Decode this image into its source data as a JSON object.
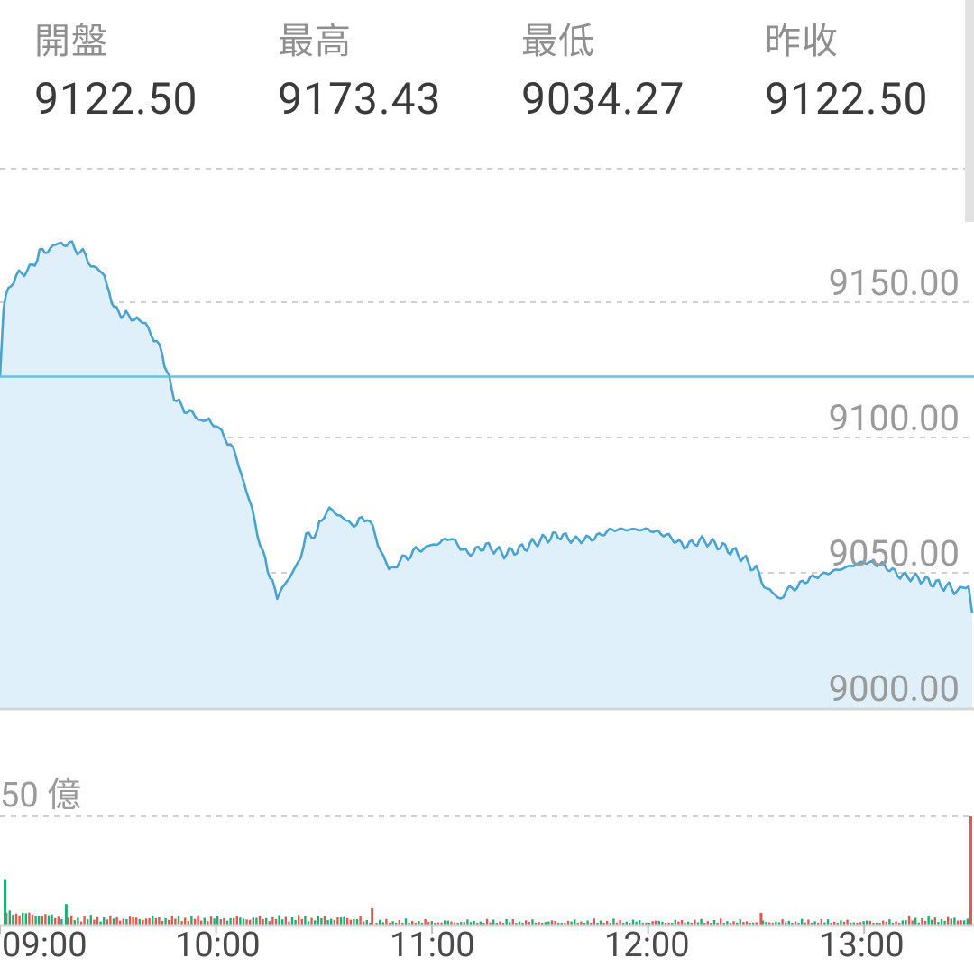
{
  "stats": [
    {
      "label": "開盤",
      "value": "9122.50"
    },
    {
      "label": "最高",
      "value": "9173.43"
    },
    {
      "label": "最低",
      "value": "9034.27"
    },
    {
      "label": "昨收",
      "value": "9122.50"
    }
  ],
  "price_axis": {
    "labels": [
      "9150.00",
      "9100.00",
      "9050.00",
      "9000.00"
    ]
  },
  "time_axis": {
    "labels": [
      "09:00",
      "10:00",
      "11:00",
      "12:00",
      "13:00"
    ]
  },
  "volume_axis": {
    "label": "50 億"
  },
  "colors": {
    "line": "#4aa3cf",
    "fill": "#dff0fb",
    "reference": "#6fbde3",
    "up": "#e05a4e",
    "down": "#1fae74",
    "grid": "#cfcfcf"
  },
  "chart_data": {
    "type": "area",
    "title": "",
    "x_range": [
      "09:00",
      "13:30"
    ],
    "y_range": [
      9000,
      9150
    ],
    "reference_line": 9122.5,
    "price_series": [
      {
        "t": "09:00",
        "y": 9122.5
      },
      {
        "t": "09:01",
        "y": 9149
      },
      {
        "t": "09:03",
        "y": 9157
      },
      {
        "t": "09:06",
        "y": 9161
      },
      {
        "t": "09:09",
        "y": 9163
      },
      {
        "t": "09:11",
        "y": 9168
      },
      {
        "t": "09:14",
        "y": 9170
      },
      {
        "t": "09:17",
        "y": 9172
      },
      {
        "t": "09:20",
        "y": 9171
      },
      {
        "t": "09:23",
        "y": 9168
      },
      {
        "t": "09:26",
        "y": 9163
      },
      {
        "t": "09:29",
        "y": 9160
      },
      {
        "t": "09:31",
        "y": 9150
      },
      {
        "t": "09:33",
        "y": 9146
      },
      {
        "t": "09:35",
        "y": 9145
      },
      {
        "t": "09:38",
        "y": 9144
      },
      {
        "t": "09:42",
        "y": 9139
      },
      {
        "t": "09:45",
        "y": 9131
      },
      {
        "t": "09:47",
        "y": 9121
      },
      {
        "t": "09:49",
        "y": 9113
      },
      {
        "t": "09:52",
        "y": 9110
      },
      {
        "t": "09:55",
        "y": 9107
      },
      {
        "t": "09:58",
        "y": 9106
      },
      {
        "t": "10:00",
        "y": 9104
      },
      {
        "t": "10:04",
        "y": 9098
      },
      {
        "t": "10:07",
        "y": 9087
      },
      {
        "t": "10:10",
        "y": 9073
      },
      {
        "t": "10:13",
        "y": 9057
      },
      {
        "t": "10:15",
        "y": 9049
      },
      {
        "t": "10:17",
        "y": 9041
      },
      {
        "t": "10:19",
        "y": 9046
      },
      {
        "t": "10:22",
        "y": 9051
      },
      {
        "t": "10:25",
        "y": 9063
      },
      {
        "t": "10:28",
        "y": 9065
      },
      {
        "t": "10:30",
        "y": 9072
      },
      {
        "t": "10:33",
        "y": 9073
      },
      {
        "t": "10:36",
        "y": 9069
      },
      {
        "t": "10:39",
        "y": 9068
      },
      {
        "t": "10:42",
        "y": 9071
      },
      {
        "t": "10:45",
        "y": 9061
      },
      {
        "t": "10:48",
        "y": 9051
      },
      {
        "t": "10:51",
        "y": 9054
      },
      {
        "t": "10:54",
        "y": 9057
      },
      {
        "t": "10:57",
        "y": 9059
      },
      {
        "t": "11:00",
        "y": 9060
      },
      {
        "t": "11:05",
        "y": 9063
      },
      {
        "t": "11:10",
        "y": 9057
      },
      {
        "t": "11:15",
        "y": 9060
      },
      {
        "t": "11:20",
        "y": 9057
      },
      {
        "t": "11:25",
        "y": 9059
      },
      {
        "t": "11:30",
        "y": 9062
      },
      {
        "t": "11:35",
        "y": 9064
      },
      {
        "t": "11:40",
        "y": 9062
      },
      {
        "t": "11:45",
        "y": 9063
      },
      {
        "t": "11:50",
        "y": 9066
      },
      {
        "t": "11:55",
        "y": 9066
      },
      {
        "t": "12:00",
        "y": 9066
      },
      {
        "t": "12:05",
        "y": 9064
      },
      {
        "t": "12:10",
        "y": 9060
      },
      {
        "t": "12:15",
        "y": 9062
      },
      {
        "t": "12:20",
        "y": 9060
      },
      {
        "t": "12:25",
        "y": 9057
      },
      {
        "t": "12:30",
        "y": 9051
      },
      {
        "t": "12:33",
        "y": 9044
      },
      {
        "t": "12:36",
        "y": 9041
      },
      {
        "t": "12:40",
        "y": 9044
      },
      {
        "t": "12:45",
        "y": 9048
      },
      {
        "t": "12:50",
        "y": 9050
      },
      {
        "t": "12:55",
        "y": 9052
      },
      {
        "t": "13:00",
        "y": 9054
      },
      {
        "t": "13:05",
        "y": 9053
      },
      {
        "t": "13:10",
        "y": 9049
      },
      {
        "t": "13:15",
        "y": 9048
      },
      {
        "t": "13:20",
        "y": 9046
      },
      {
        "t": "13:25",
        "y": 9044
      },
      {
        "t": "13:29",
        "y": 9044
      },
      {
        "t": "13:30",
        "y": 9035
      }
    ],
    "volume_series": {
      "unit": "億",
      "max": 50,
      "spikes": [
        {
          "t": "09:00",
          "y": 21,
          "dir": "down"
        },
        {
          "t": "09:18",
          "y": 9.5,
          "dir": "down"
        },
        {
          "t": "10:43",
          "y": 7.5,
          "dir": "up"
        },
        {
          "t": "12:31",
          "y": 5.5,
          "dir": "up"
        },
        {
          "t": "13:30",
          "y": 50,
          "dir": "up"
        }
      ]
    }
  }
}
